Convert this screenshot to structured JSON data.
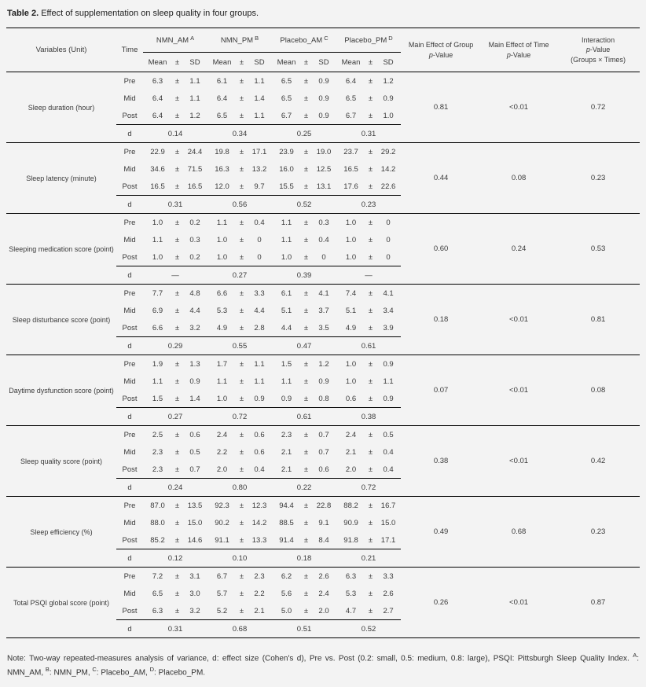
{
  "title": {
    "label": "Table 2.",
    "text": "Effect of supplementation on sleep quality in four groups."
  },
  "table": {
    "header": {
      "variables_label": "Variables (Unit)",
      "time_label": "Time",
      "groups": [
        {
          "name": "NMN_AM",
          "superscript": "A"
        },
        {
          "name": "NMN_PM",
          "superscript": "B"
        },
        {
          "name": "Placebo_AM",
          "superscript": "C"
        },
        {
          "name": "Placebo_PM",
          "superscript": "D"
        }
      ],
      "stat_labels": [
        "Mean",
        "±",
        "SD"
      ],
      "p_columns": [
        {
          "line1": "Main Effect of Group",
          "line2_html": "<i>p</i>-Value"
        },
        {
          "line1": "Main Effect of Time",
          "line2_html": "<i>p</i>-Value"
        },
        {
          "line1": "Interaction",
          "line2_html": "<i>p</i>-Value",
          "line3": "(Groups × Times)"
        }
      ]
    },
    "time_rows": [
      "Pre",
      "Mid",
      "Post"
    ],
    "d_label": "d",
    "blocks": [
      {
        "variable": "Sleep duration (hour)",
        "rows": [
          [
            [
              "6.3",
              "1.1"
            ],
            [
              "6.1",
              "1.1"
            ],
            [
              "6.5",
              "0.9"
            ],
            [
              "6.4",
              "1.2"
            ]
          ],
          [
            [
              "6.4",
              "1.1"
            ],
            [
              "6.4",
              "1.4"
            ],
            [
              "6.5",
              "0.9"
            ],
            [
              "6.5",
              "0.9"
            ]
          ],
          [
            [
              "6.4",
              "1.2"
            ],
            [
              "6.5",
              "1.1"
            ],
            [
              "6.7",
              "0.9"
            ],
            [
              "6.7",
              "1.0"
            ]
          ]
        ],
        "d": [
          "0.14",
          "0.34",
          "0.25",
          "0.31"
        ],
        "p_group": "0.81",
        "p_time": "<0.01",
        "p_interaction": "0.72"
      },
      {
        "variable": "Sleep latency (minute)",
        "rows": [
          [
            [
              "22.9",
              "24.4"
            ],
            [
              "19.8",
              "17.1"
            ],
            [
              "23.9",
              "19.0"
            ],
            [
              "23.7",
              "29.2"
            ]
          ],
          [
            [
              "34.6",
              "71.5"
            ],
            [
              "16.3",
              "13.2"
            ],
            [
              "16.0",
              "12.5"
            ],
            [
              "16.5",
              "14.2"
            ]
          ],
          [
            [
              "16.5",
              "16.5"
            ],
            [
              "12.0",
              "9.7"
            ],
            [
              "15.5",
              "13.1"
            ],
            [
              "17.6",
              "22.6"
            ]
          ]
        ],
        "d": [
          "0.31",
          "0.56",
          "0.52",
          "0.23"
        ],
        "p_group": "0.44",
        "p_time": "0.08",
        "p_interaction": "0.23"
      },
      {
        "variable": "Sleeping medication score (point)",
        "rows": [
          [
            [
              "1.0",
              "0.2"
            ],
            [
              "1.1",
              "0.4"
            ],
            [
              "1.1",
              "0.3"
            ],
            [
              "1.0",
              "0"
            ]
          ],
          [
            [
              "1.1",
              "0.3"
            ],
            [
              "1.0",
              "0"
            ],
            [
              "1.1",
              "0.4"
            ],
            [
              "1.0",
              "0"
            ]
          ],
          [
            [
              "1.0",
              "0.2"
            ],
            [
              "1.0",
              "0"
            ],
            [
              "1.0",
              "0"
            ],
            [
              "1.0",
              "0"
            ]
          ]
        ],
        "d": [
          "—",
          "0.27",
          "0.39",
          "—"
        ],
        "p_group": "0.60",
        "p_time": "0.24",
        "p_interaction": "0.53"
      },
      {
        "variable": "Sleep disturbance score (point)",
        "rows": [
          [
            [
              "7.7",
              "4.8"
            ],
            [
              "6.6",
              "3.3"
            ],
            [
              "6.1",
              "4.1"
            ],
            [
              "7.4",
              "4.1"
            ]
          ],
          [
            [
              "6.9",
              "4.4"
            ],
            [
              "5.3",
              "4.4"
            ],
            [
              "5.1",
              "3.7"
            ],
            [
              "5.1",
              "3.4"
            ]
          ],
          [
            [
              "6.6",
              "3.2"
            ],
            [
              "4.9",
              "2.8"
            ],
            [
              "4.4",
              "3.5"
            ],
            [
              "4.9",
              "3.9"
            ]
          ]
        ],
        "d": [
          "0.29",
          "0.55",
          "0.47",
          "0.61"
        ],
        "p_group": "0.18",
        "p_time": "<0.01",
        "p_interaction": "0.81"
      },
      {
        "variable": "Daytime dysfunction score (point)",
        "rows": [
          [
            [
              "1.9",
              "1.3"
            ],
            [
              "1.7",
              "1.1"
            ],
            [
              "1.5",
              "1.2"
            ],
            [
              "1.0",
              "0.9"
            ]
          ],
          [
            [
              "1.1",
              "0.9"
            ],
            [
              "1.1",
              "1.1"
            ],
            [
              "1.1",
              "0.9"
            ],
            [
              "1.0",
              "1.1"
            ]
          ],
          [
            [
              "1.5",
              "1.4"
            ],
            [
              "1.0",
              "0.9"
            ],
            [
              "0.9",
              "0.8"
            ],
            [
              "0.6",
              "0.9"
            ]
          ]
        ],
        "d": [
          "0.27",
          "0.72",
          "0.61",
          "0.38"
        ],
        "p_group": "0.07",
        "p_time": "<0.01",
        "p_interaction": "0.08"
      },
      {
        "variable": "Sleep quality score (point)",
        "rows": [
          [
            [
              "2.5",
              "0.6"
            ],
            [
              "2.4",
              "0.6"
            ],
            [
              "2.3",
              "0.7"
            ],
            [
              "2.4",
              "0.5"
            ]
          ],
          [
            [
              "2.3",
              "0.5"
            ],
            [
              "2.2",
              "0.6"
            ],
            [
              "2.1",
              "0.7"
            ],
            [
              "2.1",
              "0.4"
            ]
          ],
          [
            [
              "2.3",
              "0.7"
            ],
            [
              "2.0",
              "0.4"
            ],
            [
              "2.1",
              "0.6"
            ],
            [
              "2.0",
              "0.4"
            ]
          ]
        ],
        "d": [
          "0.24",
          "0.80",
          "0.22",
          "0.72"
        ],
        "p_group": "0.38",
        "p_time": "<0.01",
        "p_interaction": "0.42"
      },
      {
        "variable": "Sleep efficiency (%)",
        "rows": [
          [
            [
              "87.0",
              "13.5"
            ],
            [
              "92.3",
              "12.3"
            ],
            [
              "94.4",
              "22.8"
            ],
            [
              "88.2",
              "16.7"
            ]
          ],
          [
            [
              "88.0",
              "15.0"
            ],
            [
              "90.2",
              "14.2"
            ],
            [
              "88.5",
              "9.1"
            ],
            [
              "90.9",
              "15.0"
            ]
          ],
          [
            [
              "85.2",
              "14.6"
            ],
            [
              "91.1",
              "13.3"
            ],
            [
              "91.4",
              "8.4"
            ],
            [
              "91.8",
              "17.1"
            ]
          ]
        ],
        "d": [
          "0.12",
          "0.10",
          "0.18",
          "0.21"
        ],
        "p_group": "0.49",
        "p_time": "0.68",
        "p_interaction": "0.23"
      },
      {
        "variable": "Total PSQI global score (point)",
        "rows": [
          [
            [
              "7.2",
              "3.1"
            ],
            [
              "6.7",
              "2.3"
            ],
            [
              "6.2",
              "2.6"
            ],
            [
              "6.3",
              "3.3"
            ]
          ],
          [
            [
              "6.5",
              "3.0"
            ],
            [
              "5.7",
              "2.2"
            ],
            [
              "5.6",
              "2.4"
            ],
            [
              "5.3",
              "2.6"
            ]
          ],
          [
            [
              "6.3",
              "3.2"
            ],
            [
              "5.2",
              "2.1"
            ],
            [
              "5.0",
              "2.0"
            ],
            [
              "4.7",
              "2.7"
            ]
          ]
        ],
        "d": [
          "0.31",
          "0.68",
          "0.51",
          "0.52"
        ],
        "p_group": "0.26",
        "p_time": "<0.01",
        "p_interaction": "0.87"
      }
    ]
  },
  "footnote": {
    "note_html": "Note: Two-way repeated-measures analysis of variance, d: effect size (Cohen's d), Pre vs. Post (0.2: small, 0.5: medium, 0.8: large), PSQI: Pittsburgh Sleep Quality Index. <sup>A</sup>: NMN_AM, <sup>B</sup>: NMN_PM, <sup>C</sup>: Placebo_AM, <sup>D</sup>: Placebo_PM."
  }
}
